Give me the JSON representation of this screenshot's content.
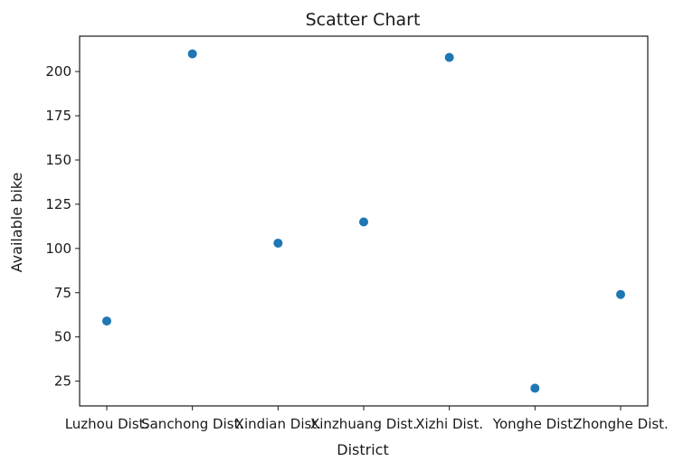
{
  "chart_data": {
    "type": "scatter",
    "title": "Scatter Chart",
    "xlabel": "District",
    "ylabel": "Available bike",
    "categories": [
      "Luzhou Dist.",
      "Sanchong Dist.",
      "Xindian Dist.",
      "Xinzhuang Dist.",
      "Xizhi Dist.",
      "Yonghe Dist.",
      "Zhonghe Dist."
    ],
    "values": [
      59,
      210,
      103,
      115,
      208,
      21,
      74
    ],
    "ylim": [
      11,
      220
    ],
    "yticks": [
      25,
      50,
      75,
      100,
      125,
      150,
      175,
      200
    ],
    "grid": false,
    "marker_color": "#1f77b4"
  }
}
